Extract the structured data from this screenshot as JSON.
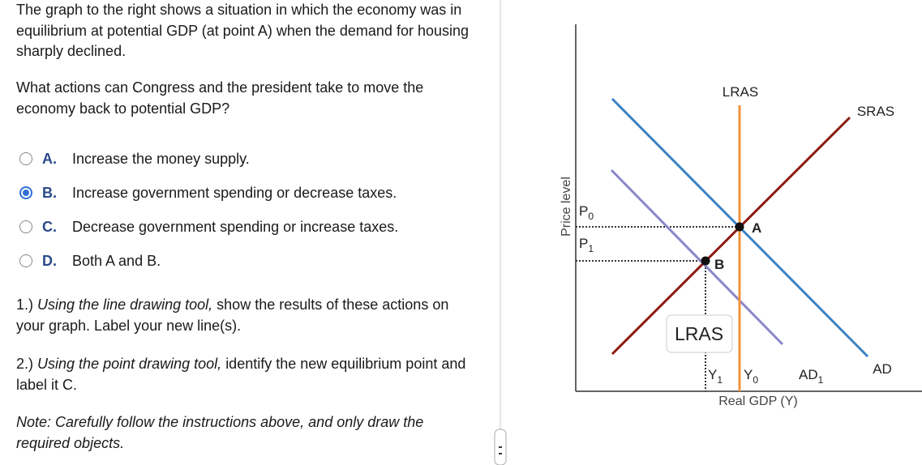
{
  "question": {
    "intro": "The graph to the right shows a situation in which the economy was in equilibrium at potential GDP (at point A) when the demand for housing sharply declined.",
    "prompt": "What actions can Congress and the president take to move the economy back to potential GDP?",
    "options": [
      {
        "letter": "A.",
        "text": "Increase the money supply."
      },
      {
        "letter": "B.",
        "text": "Increase government spending or decrease taxes."
      },
      {
        "letter": "C.",
        "text": "Decrease government spending or increase taxes."
      },
      {
        "letter": "D.",
        "text": "Both A and B."
      }
    ],
    "step1": {
      "number": "1.)",
      "tool": "Using the line drawing tool,",
      "rest": "show the results of these actions on your graph. Label your new line(s)."
    },
    "step2": {
      "number": "2.)",
      "tool": "Using the point drawing tool,",
      "rest": "identify the new equilibrium point and label it C."
    },
    "note": "Note: Carefully follow the instructions above, and only draw the required objects."
  },
  "graph": {
    "y_axis_label": "Price level",
    "x_axis_label": "Real GDP (Y)",
    "p0": {
      "base": "P",
      "sub": "0"
    },
    "p1": {
      "base": "P",
      "sub": "1"
    },
    "y1": {
      "base": "Y",
      "sub": "1"
    },
    "y0": {
      "base": "Y",
      "sub": "0"
    },
    "lras": "LRAS",
    "sras": "SRAS",
    "ad": "AD",
    "ad1": {
      "base": "AD",
      "sub": "1"
    },
    "point_a": "A",
    "point_b": "B",
    "tooltip": "LRAS"
  }
}
